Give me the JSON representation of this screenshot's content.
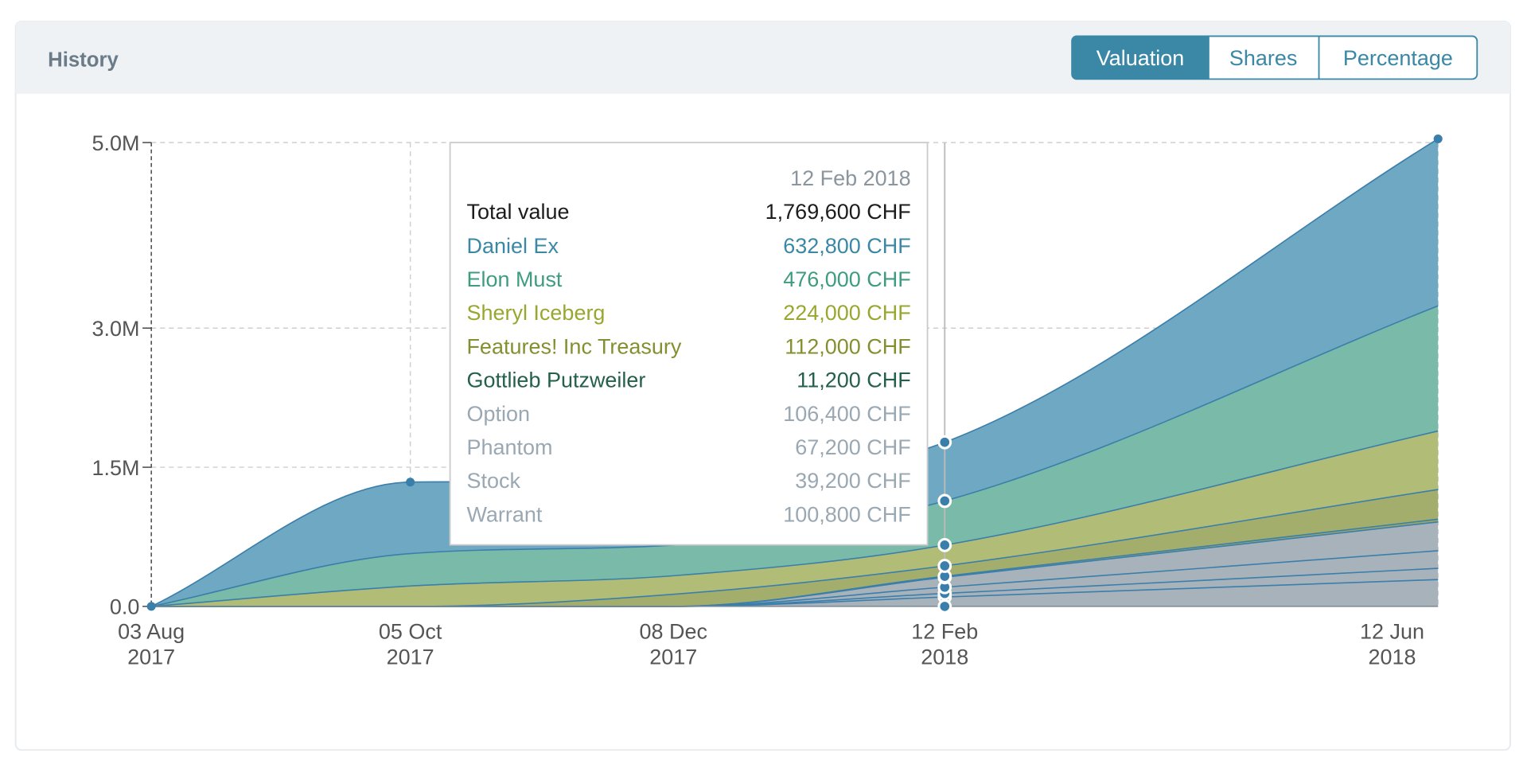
{
  "panel": {
    "title": "History",
    "tabs": [
      {
        "label": "Valuation",
        "active": true
      },
      {
        "label": "Shares",
        "active": false
      },
      {
        "label": "Percentage",
        "active": false
      }
    ]
  },
  "colors": {
    "accent": "#3a88a6",
    "header_bg": "#eef2f5",
    "grid": "#cfcfcf"
  },
  "tooltip": {
    "date": "12 Feb 2018",
    "total_label": "Total value",
    "total_value": "1,769,600 CHF",
    "rows": [
      {
        "name": "Daniel Ex",
        "value": "632,800 CHF",
        "color": "#3a88a6"
      },
      {
        "name": "Elon Must",
        "value": "476,000 CHF",
        "color": "#3f9c80"
      },
      {
        "name": "Sheryl Iceberg",
        "value": "224,000 CHF",
        "color": "#9aa72f"
      },
      {
        "name": "Features! Inc Treasury",
        "value": "112,000 CHF",
        "color": "#84902f"
      },
      {
        "name": "Gottlieb Putzweiler",
        "value": "11,200 CHF",
        "color": "#24604a"
      },
      {
        "name": "Option",
        "value": "106,400 CHF",
        "color": "#9aa8b3"
      },
      {
        "name": "Phantom",
        "value": "67,200 CHF",
        "color": "#9aa8b3"
      },
      {
        "name": "Stock",
        "value": "39,200 CHF",
        "color": "#9aa8b3"
      },
      {
        "name": "Warrant",
        "value": "100,800 CHF",
        "color": "#9aa8b3"
      }
    ]
  },
  "chart_data": {
    "type": "area",
    "stacked": true,
    "x": [
      "2017-08-03",
      "2017-10-05",
      "2017-12-08",
      "2018-02-12",
      "2018-06-12"
    ],
    "x_tick_labels": [
      [
        "03 Aug",
        "2017"
      ],
      [
        "05 Oct",
        "2017"
      ],
      [
        "08 Dec",
        "2017"
      ],
      [
        "12 Feb",
        "2018"
      ],
      [
        "12 Jun",
        "2018"
      ]
    ],
    "y_ticks": [
      0,
      1500000,
      3000000,
      5000000
    ],
    "y_tick_labels": [
      "0.0",
      "1.5M",
      "3.0M",
      "5.0M"
    ],
    "ylim": [
      0,
      5000000
    ],
    "grid": true,
    "series": [
      {
        "name": "Warrant",
        "color": "#a8b2bb",
        "values": [
          0,
          0,
          0,
          100800,
          290000
        ]
      },
      {
        "name": "Stock",
        "color": "#a8b2bb",
        "values": [
          0,
          0,
          0,
          39200,
          120000
        ]
      },
      {
        "name": "Phantom",
        "color": "#a8b2bb",
        "values": [
          0,
          0,
          0,
          67200,
          190000
        ]
      },
      {
        "name": "Option",
        "color": "#a8b2bb",
        "values": [
          0,
          0,
          0,
          106400,
          310000
        ]
      },
      {
        "name": "Gottlieb Putzweiler",
        "color": "#9aa667",
        "values": [
          0,
          0,
          0,
          11200,
          30000
        ]
      },
      {
        "name": "Features! Inc Treasury",
        "color": "#a3ae6d",
        "values": [
          0,
          0,
          130000,
          112000,
          320000
        ]
      },
      {
        "name": "Sheryl Iceberg",
        "color": "#b1bd76",
        "values": [
          0,
          220000,
          200000,
          224000,
          630000
        ]
      },
      {
        "name": "Elon Must",
        "color": "#79bba8",
        "values": [
          0,
          350000,
          330000,
          476000,
          1350000
        ]
      },
      {
        "name": "Daniel Ex",
        "color": "#6fa8c2",
        "values": [
          0,
          770000,
          690000,
          632800,
          1800000
        ]
      }
    ],
    "hover_x": "2018-02-12",
    "marker_x": [
      "2017-08-03",
      "2017-10-05",
      "2018-06-12"
    ]
  }
}
